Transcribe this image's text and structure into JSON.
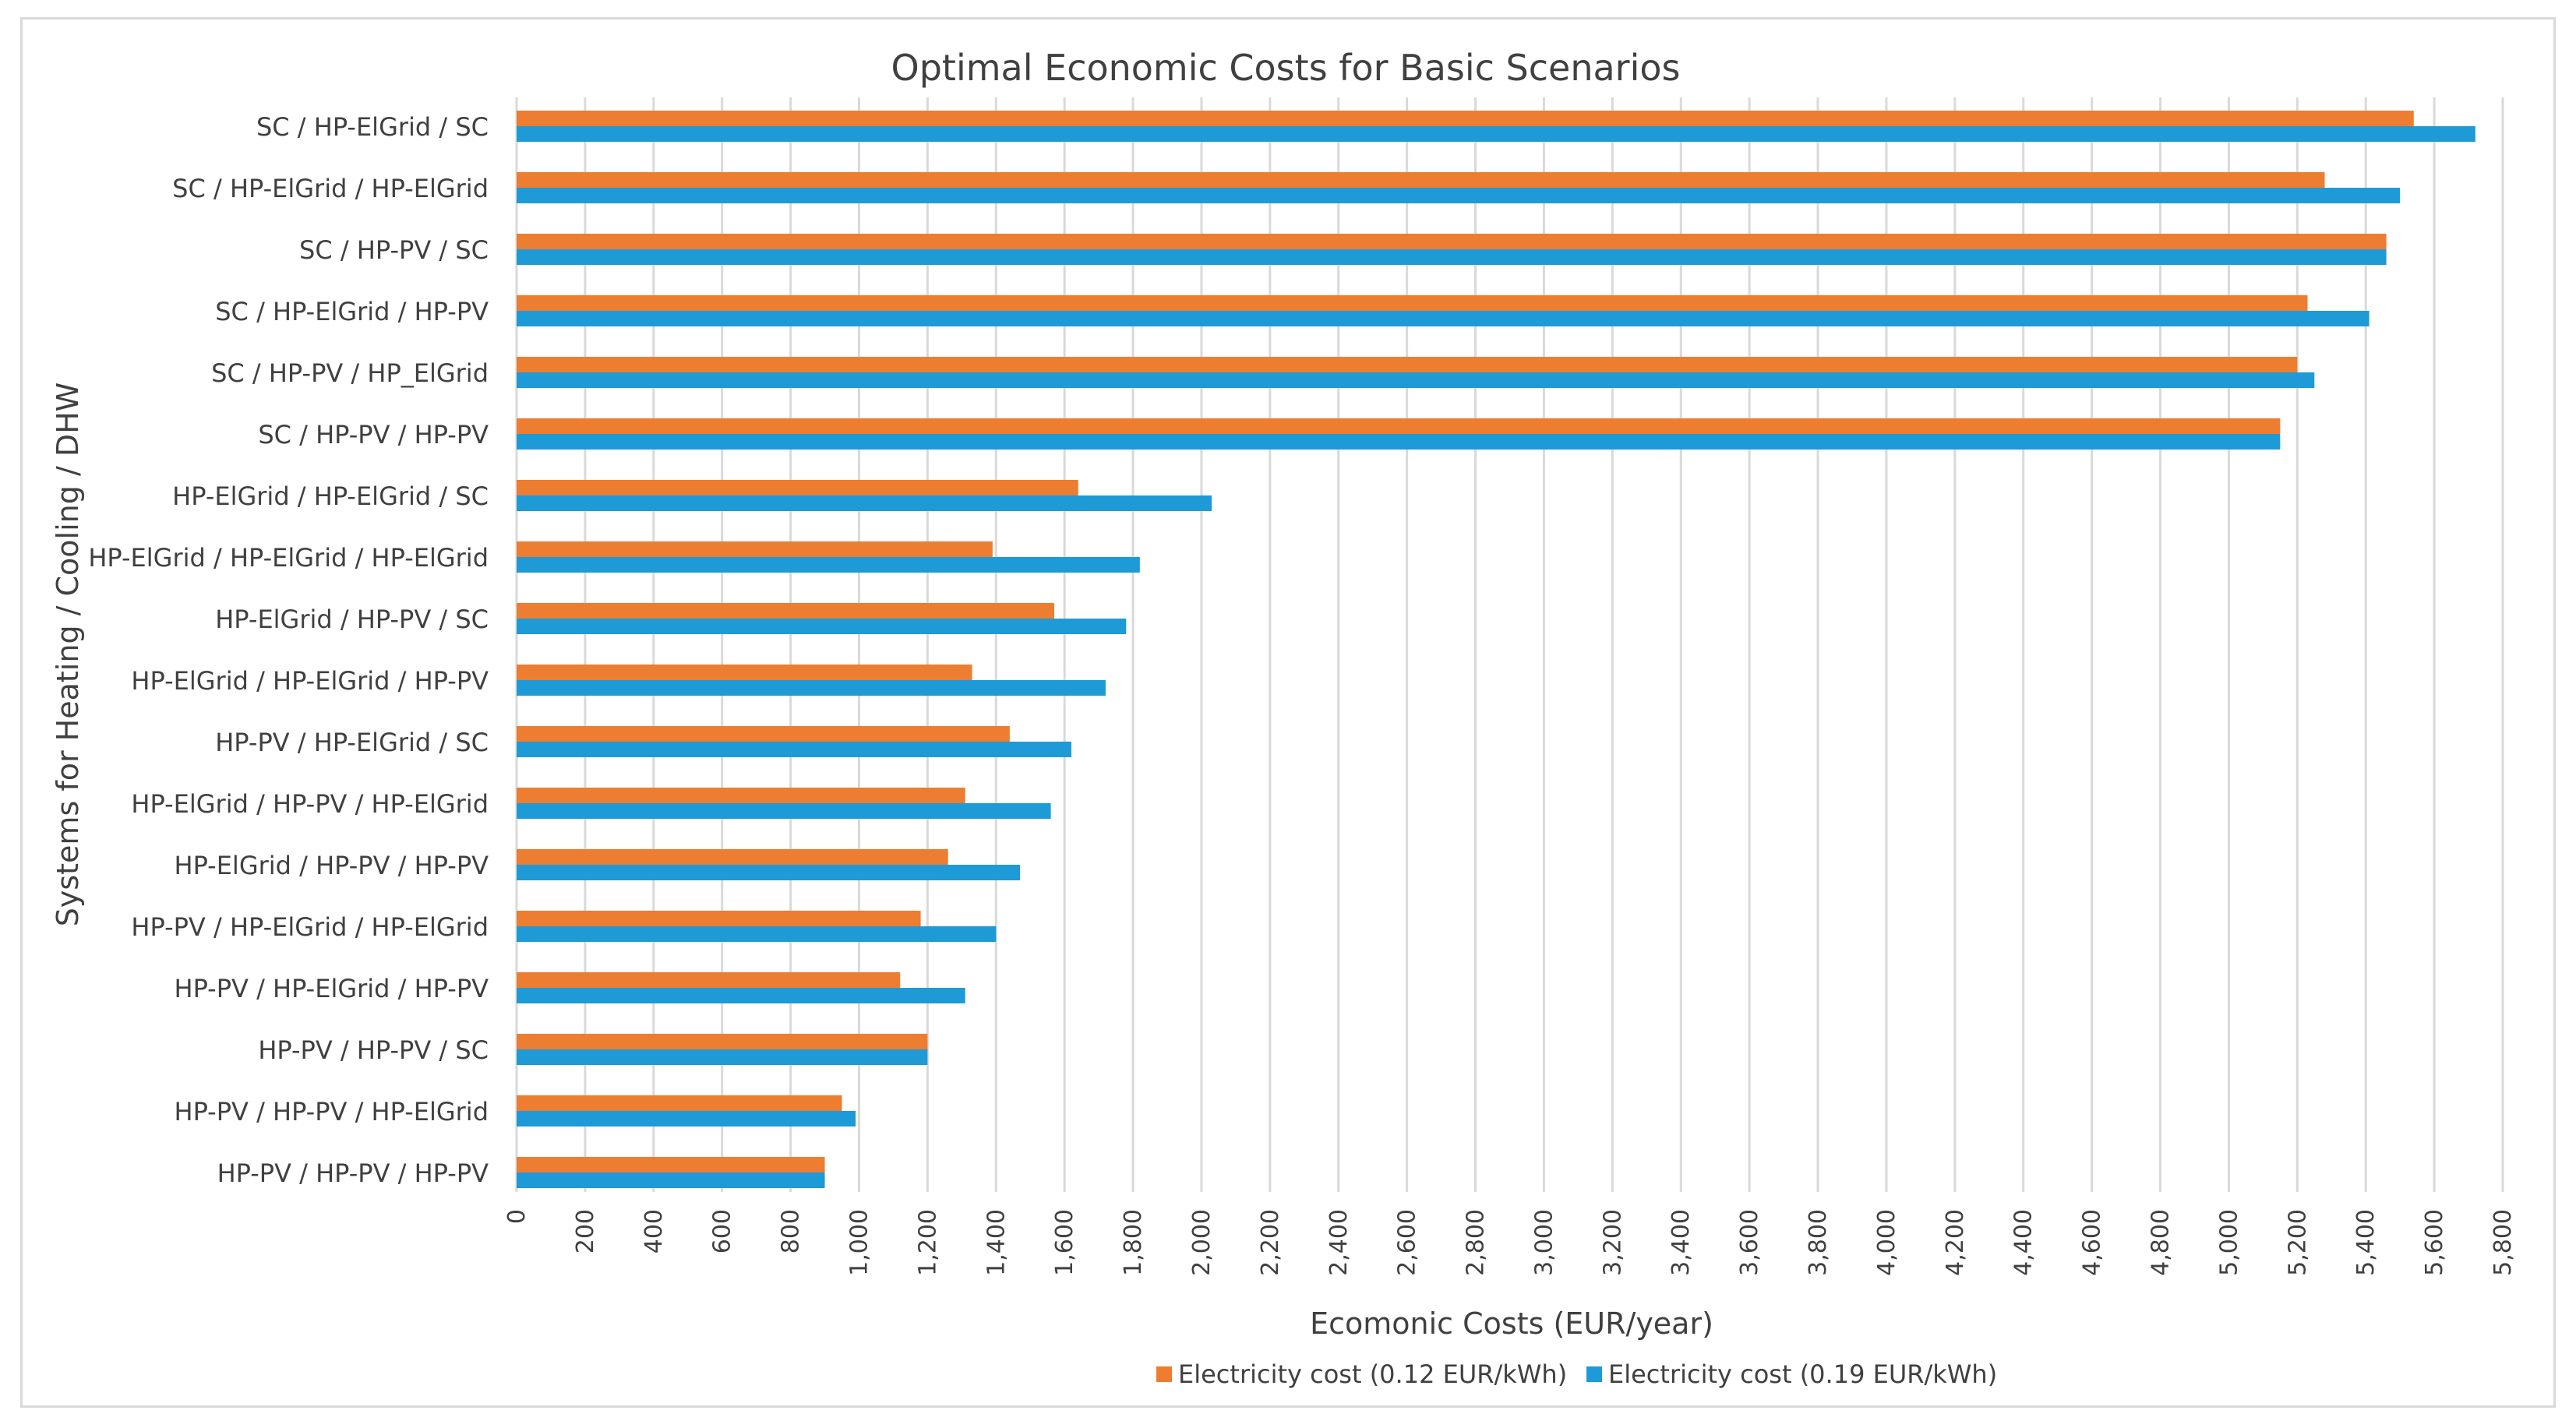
{
  "chart_data": {
    "type": "bar",
    "orientation": "horizontal",
    "title": "Optimal Economic Costs for Basic Scenarios",
    "xlabel": "Ecomonic Costs (EUR/year)",
    "ylabel": "Systems for Heating / Cooling / DHW",
    "xlim": [
      0,
      5800
    ],
    "x_ticks": [
      0,
      200,
      400,
      600,
      800,
      1000,
      1200,
      1400,
      1600,
      1800,
      2000,
      2200,
      2400,
      2600,
      2800,
      3000,
      3200,
      3400,
      3600,
      3800,
      4000,
      4200,
      4400,
      4600,
      4800,
      5000,
      5200,
      5400,
      5600,
      5800
    ],
    "x_tick_labels": [
      "0",
      "200",
      "400",
      "600",
      "800",
      "1,000",
      "1,200",
      "1,400",
      "1,600",
      "1,800",
      "2,000",
      "2,200",
      "2,400",
      "2,600",
      "2,800",
      "3,000",
      "3,200",
      "3,400",
      "3,600",
      "3,800",
      "4,000",
      "4,200",
      "4,400",
      "4,600",
      "4,800",
      "5,000",
      "5,200",
      "5,400",
      "5,600",
      "5,800"
    ],
    "grid": "vertical",
    "legend_position": "bottom",
    "categories": [
      "SC / HP-ElGrid / SC",
      "SC / HP-ElGrid / HP-ElGrid",
      "SC / HP-PV / SC",
      "SC / HP-ElGrid / HP-PV",
      "SC / HP-PV / HP_ElGrid",
      "SC / HP-PV / HP-PV",
      "HP-ElGrid / HP-ElGrid / SC",
      "HP-ElGrid / HP-ElGrid / HP-ElGrid",
      "HP-ElGrid / HP-PV / SC",
      "HP-ElGrid / HP-ElGrid / HP-PV",
      "HP-PV / HP-ElGrid / SC",
      "HP-ElGrid / HP-PV / HP-ElGrid",
      "HP-ElGrid / HP-PV / HP-PV",
      "HP-PV / HP-ElGrid / HP-ElGrid",
      "HP-PV / HP-ElGrid / HP-PV",
      "HP-PV / HP-PV / SC",
      "HP-PV / HP-PV / HP-ElGrid",
      "HP-PV / HP-PV / HP-PV"
    ],
    "series": [
      {
        "name": "Electricity cost (0.12 EUR/kWh)",
        "color": "#ED7D31",
        "values": [
          5540,
          5280,
          5460,
          5230,
          5200,
          5150,
          1640,
          1390,
          1570,
          1330,
          1440,
          1310,
          1260,
          1180,
          1120,
          1200,
          950,
          900
        ]
      },
      {
        "name": "Electricity cost (0.19 EUR/kWh)",
        "color": "#1E9AD6",
        "values": [
          5720,
          5500,
          5460,
          5410,
          5250,
          5150,
          2030,
          1820,
          1780,
          1720,
          1620,
          1560,
          1470,
          1400,
          1310,
          1200,
          990,
          900
        ]
      }
    ]
  },
  "colors": {
    "gridline": "#d9d9d9",
    "text": "#404040",
    "border": "#d9d9d9"
  }
}
